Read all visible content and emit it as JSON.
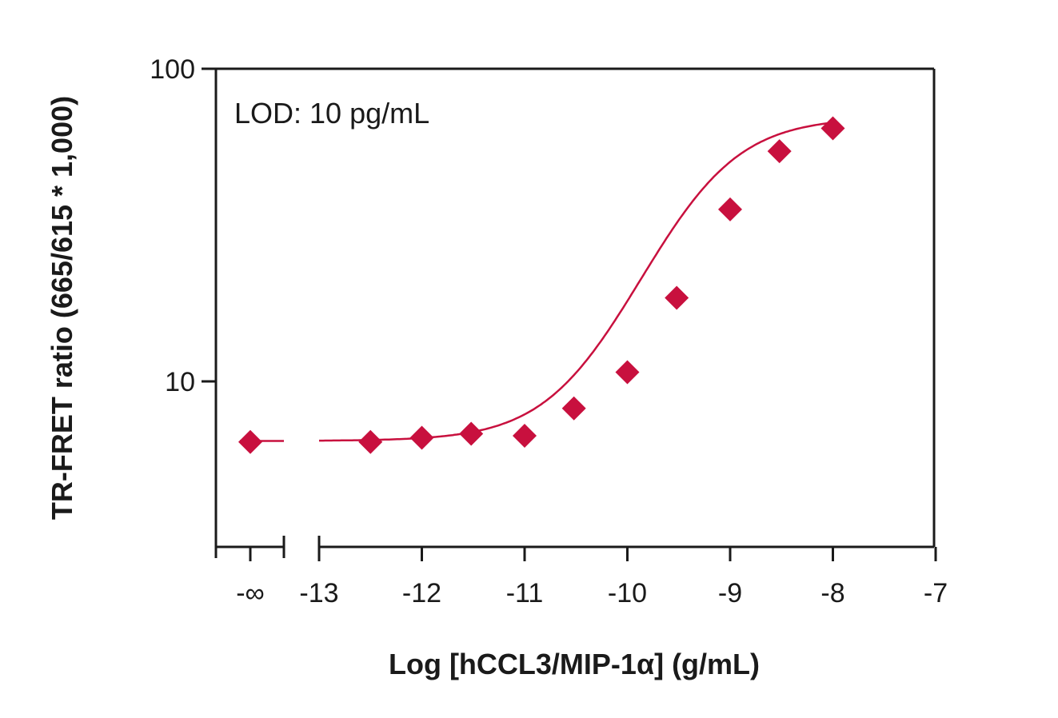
{
  "chart_data": {
    "type": "scatter",
    "xlabel": "Log [hCCL3/MIP-1α] (g/mL)",
    "ylabel": "TR-FRET ratio (665/615 * 1,000)",
    "annotation": "LOD: 10 pg/mL",
    "y_scale": "log",
    "ylim": [
      3,
      100
    ],
    "y_ticks": [
      10,
      100
    ],
    "y_tick_labels": [
      "10",
      "100"
    ],
    "x_axis_break": true,
    "x_break_label": "-∞",
    "xlim": [
      -13.0,
      -7.0
    ],
    "x_ticks": [
      -13,
      -12,
      -11,
      -10,
      -9,
      -8,
      -7
    ],
    "x_tick_labels": [
      "-13",
      "-12",
      "-11",
      "-10",
      "-9",
      "-8",
      "-7"
    ],
    "grid": false,
    "colors": {
      "series": "#c8103e",
      "axis": "#1a1a1a"
    },
    "baseline_point": {
      "x": "-∞",
      "y": 6.4
    },
    "points": [
      {
        "x": -12.5,
        "y": 6.4
      },
      {
        "x": -12.0,
        "y": 6.6
      },
      {
        "x": -11.52,
        "y": 6.8
      },
      {
        "x": -11.0,
        "y": 6.7
      },
      {
        "x": -10.52,
        "y": 8.2
      },
      {
        "x": -10.0,
        "y": 10.7
      },
      {
        "x": -9.52,
        "y": 18.5
      },
      {
        "x": -9.0,
        "y": 35.5
      },
      {
        "x": -8.52,
        "y": 54.5
      },
      {
        "x": -8.0,
        "y": 64.5
      }
    ],
    "fit": {
      "bottom": 6.45,
      "top": 70.0,
      "logEC50": -9.35,
      "hill": 1.0
    }
  }
}
